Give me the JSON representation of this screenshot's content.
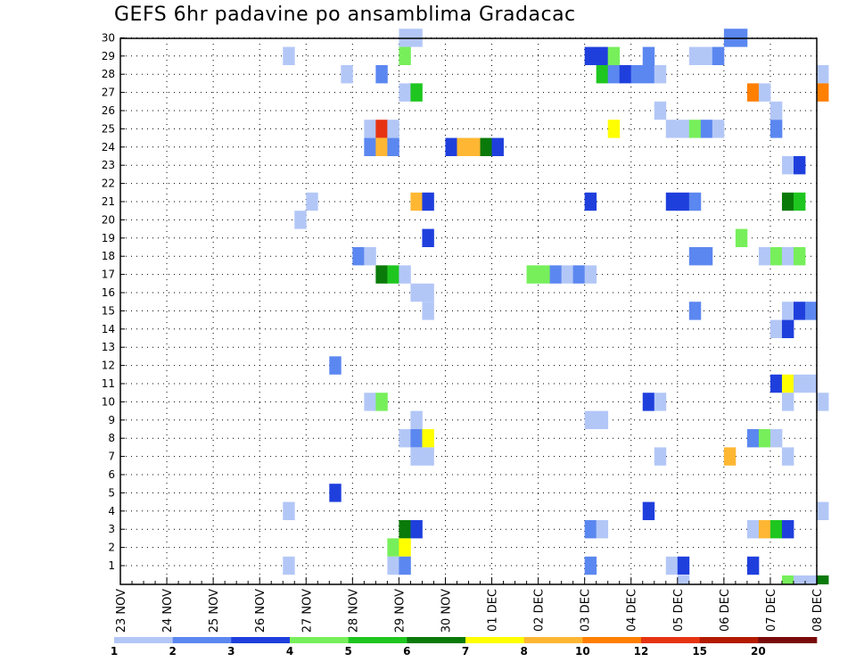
{
  "chart_data": {
    "type": "heatmap",
    "title": "GEFS 6hr padavine po ansamblima Gradacac",
    "x_tick_labels": [
      "23 NOV",
      "24 NOV",
      "25 NOV",
      "26 NOV",
      "27 NOV",
      "28 NOV",
      "29 NOV",
      "30 NOV",
      "01 DEC",
      "02 DEC",
      "03 DEC",
      "04 DEC",
      "05 DEC",
      "06 DEC",
      "07 DEC",
      "08 DEC"
    ],
    "y_tick_labels": [
      "1",
      "2",
      "3",
      "4",
      "5",
      "6",
      "7",
      "8",
      "9",
      "10",
      "11",
      "12",
      "13",
      "14",
      "15",
      "16",
      "17",
      "18",
      "19",
      "20",
      "21",
      "22",
      "23",
      "24",
      "25",
      "26",
      "27",
      "28",
      "29",
      "30"
    ],
    "ylim": [
      1,
      30
    ],
    "x_unit": "6-hour step",
    "x_steps_per_day": 4,
    "grid": true,
    "colorbar": {
      "labels": [
        "1",
        "2",
        "3",
        "4",
        "5",
        "6",
        "7",
        "8",
        "10",
        "12",
        "15",
        "20"
      ],
      "colors": [
        "#b3c7f7",
        "#5b87f0",
        "#1f3fdd",
        "#77ef5b",
        "#1fc61f",
        "#0a7a0a",
        "#ffff00",
        "#ffb733",
        "#ff7f00",
        "#e63312",
        "#b31a00",
        "#7a0a0a"
      ]
    },
    "cells": [
      [
        30,
        24,
        1
      ],
      [
        30,
        25,
        1
      ],
      [
        30,
        52,
        2
      ],
      [
        30,
        53,
        2
      ],
      [
        29,
        14,
        1
      ],
      [
        29,
        24,
        4
      ],
      [
        29,
        40,
        3
      ],
      [
        29,
        41,
        3
      ],
      [
        29,
        42,
        4
      ],
      [
        29,
        45,
        2
      ],
      [
        29,
        49,
        1
      ],
      [
        29,
        50,
        1
      ],
      [
        29,
        51,
        2
      ],
      [
        28,
        19,
        1
      ],
      [
        28,
        22,
        2
      ],
      [
        28,
        41,
        5
      ],
      [
        28,
        42,
        2
      ],
      [
        28,
        43,
        3
      ],
      [
        28,
        44,
        2
      ],
      [
        28,
        45,
        2
      ],
      [
        28,
        46,
        1
      ],
      [
        28,
        60,
        1
      ],
      [
        27,
        24,
        1
      ],
      [
        27,
        25,
        5
      ],
      [
        27,
        54,
        9
      ],
      [
        27,
        55,
        1
      ],
      [
        27,
        60,
        9
      ],
      [
        26,
        46,
        1
      ],
      [
        26,
        56,
        1
      ],
      [
        25,
        21,
        1
      ],
      [
        25,
        22,
        10
      ],
      [
        25,
        23,
        1
      ],
      [
        25,
        42,
        7
      ],
      [
        25,
        47,
        1
      ],
      [
        25,
        48,
        1
      ],
      [
        25,
        49,
        4
      ],
      [
        25,
        50,
        2
      ],
      [
        25,
        51,
        1
      ],
      [
        25,
        56,
        2
      ],
      [
        24,
        21,
        2
      ],
      [
        24,
        22,
        8
      ],
      [
        24,
        23,
        2
      ],
      [
        24,
        28,
        3
      ],
      [
        24,
        29,
        8
      ],
      [
        24,
        30,
        8
      ],
      [
        24,
        31,
        6
      ],
      [
        24,
        32,
        3
      ],
      [
        23,
        57,
        1
      ],
      [
        23,
        58,
        3
      ],
      [
        21,
        16,
        1
      ],
      [
        21,
        25,
        8
      ],
      [
        21,
        26,
        3
      ],
      [
        21,
        40,
        3
      ],
      [
        21,
        47,
        3
      ],
      [
        21,
        48,
        3
      ],
      [
        21,
        49,
        2
      ],
      [
        21,
        57,
        6
      ],
      [
        21,
        58,
        5
      ],
      [
        20,
        15,
        1
      ],
      [
        19,
        26,
        3
      ],
      [
        19,
        53,
        4
      ],
      [
        18,
        20,
        2
      ],
      [
        18,
        21,
        1
      ],
      [
        18,
        49,
        2
      ],
      [
        18,
        50,
        2
      ],
      [
        18,
        55,
        1
      ],
      [
        18,
        56,
        4
      ],
      [
        18,
        57,
        1
      ],
      [
        18,
        58,
        4
      ],
      [
        17,
        22,
        6
      ],
      [
        17,
        23,
        5
      ],
      [
        17,
        24,
        1
      ],
      [
        17,
        35,
        4
      ],
      [
        17,
        36,
        4
      ],
      [
        17,
        37,
        2
      ],
      [
        17,
        38,
        1
      ],
      [
        17,
        39,
        2
      ],
      [
        17,
        40,
        1
      ],
      [
        16,
        25,
        1
      ],
      [
        16,
        26,
        1
      ],
      [
        15,
        26,
        1
      ],
      [
        15,
        49,
        2
      ],
      [
        15,
        57,
        1
      ],
      [
        15,
        58,
        3
      ],
      [
        15,
        59,
        2
      ],
      [
        14,
        56,
        1
      ],
      [
        14,
        57,
        3
      ],
      [
        12,
        18,
        2
      ],
      [
        11,
        56,
        3
      ],
      [
        11,
        57,
        7
      ],
      [
        11,
        58,
        1
      ],
      [
        11,
        59,
        1
      ],
      [
        10,
        21,
        1
      ],
      [
        10,
        22,
        4
      ],
      [
        10,
        45,
        3
      ],
      [
        10,
        46,
        1
      ],
      [
        10,
        57,
        1
      ],
      [
        10,
        60,
        1
      ],
      [
        9,
        25,
        1
      ],
      [
        9,
        40,
        1
      ],
      [
        9,
        41,
        1
      ],
      [
        8,
        24,
        1
      ],
      [
        8,
        25,
        2
      ],
      [
        8,
        26,
        7
      ],
      [
        8,
        54,
        2
      ],
      [
        8,
        55,
        4
      ],
      [
        8,
        56,
        1
      ],
      [
        7,
        25,
        1
      ],
      [
        7,
        26,
        1
      ],
      [
        7,
        46,
        1
      ],
      [
        7,
        52,
        8
      ],
      [
        7,
        57,
        1
      ],
      [
        5,
        18,
        3
      ],
      [
        4,
        14,
        1
      ],
      [
        4,
        45,
        3
      ],
      [
        4,
        60,
        1
      ],
      [
        3,
        24,
        6
      ],
      [
        3,
        25,
        3
      ],
      [
        3,
        40,
        2
      ],
      [
        3,
        41,
        1
      ],
      [
        3,
        54,
        1
      ],
      [
        3,
        55,
        8
      ],
      [
        3,
        56,
        5
      ],
      [
        3,
        57,
        3
      ],
      [
        2,
        23,
        4
      ],
      [
        2,
        24,
        7
      ],
      [
        1,
        14,
        1
      ],
      [
        1,
        23,
        1
      ],
      [
        1,
        24,
        2
      ],
      [
        1,
        40,
        2
      ],
      [
        1,
        47,
        1
      ],
      [
        1,
        48,
        3
      ],
      [
        1,
        54,
        3
      ],
      [
        0,
        48,
        1
      ],
      [
        0,
        57,
        4
      ],
      [
        0,
        58,
        1
      ],
      [
        0,
        59,
        1
      ],
      [
        0,
        60,
        6
      ]
    ]
  }
}
